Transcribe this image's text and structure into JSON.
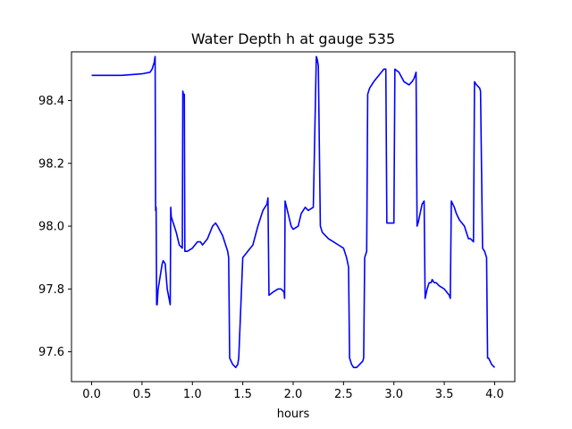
{
  "chart_data": {
    "type": "line",
    "title": "Water Depth h at gauge 535",
    "xlabel": "hours",
    "ylabel": "",
    "xlim": [
      -0.2,
      4.2
    ],
    "ylim": [
      97.505,
      98.555
    ],
    "xticks": [
      0.0,
      0.5,
      1.0,
      1.5,
      2.0,
      2.5,
      3.0,
      3.5,
      4.0
    ],
    "xtick_labels": [
      "0.0",
      "0.5",
      "1.0",
      "1.5",
      "2.0",
      "2.5",
      "3.0",
      "3.5",
      "4.0"
    ],
    "yticks": [
      97.6,
      97.8,
      98.0,
      98.2,
      98.4
    ],
    "ytick_labels": [
      "97.6",
      "97.8",
      "98.0",
      "98.2",
      "98.4"
    ],
    "grid": false,
    "series": [
      {
        "color": "#0000ff",
        "x": [
          0.0,
          0.3,
          0.5,
          0.58,
          0.6,
          0.62,
          0.63,
          0.635,
          0.64,
          0.645,
          0.65,
          0.66,
          0.7,
          0.71,
          0.73,
          0.75,
          0.78,
          0.785,
          0.79,
          0.8,
          0.84,
          0.87,
          0.9,
          0.905,
          0.91,
          0.92,
          0.925,
          0.93,
          0.95,
          1.0,
          1.05,
          1.08,
          1.1,
          1.15,
          1.2,
          1.23,
          1.25,
          1.3,
          1.35,
          1.36,
          1.37,
          1.4,
          1.43,
          1.45,
          1.46,
          1.5,
          1.55,
          1.6,
          1.65,
          1.7,
          1.74,
          1.75,
          1.76,
          1.8,
          1.85,
          1.88,
          1.91,
          1.915,
          1.92,
          1.95,
          1.98,
          2.0,
          2.05,
          2.08,
          2.1,
          2.12,
          2.15,
          2.2,
          2.23,
          2.24,
          2.245,
          2.25,
          2.27,
          2.28,
          2.29,
          2.32,
          2.35,
          2.4,
          2.45,
          2.5,
          2.53,
          2.55,
          2.56,
          2.58,
          2.6,
          2.63,
          2.66,
          2.69,
          2.7,
          2.71,
          2.73,
          2.74,
          2.76,
          2.8,
          2.85,
          2.9,
          2.92,
          2.93,
          2.94,
          2.96,
          2.99,
          3.0,
          3.01,
          3.05,
          3.1,
          3.15,
          3.18,
          3.2,
          3.22,
          3.23,
          3.24,
          3.26,
          3.28,
          3.3,
          3.31,
          3.33,
          3.35,
          3.37,
          3.38,
          3.4,
          3.42,
          3.45,
          3.5,
          3.55,
          3.56,
          3.57,
          3.6,
          3.62,
          3.65,
          3.7,
          3.72,
          3.74,
          3.76,
          3.79,
          3.8,
          3.82,
          3.85,
          3.86,
          3.88,
          3.9,
          3.92,
          3.93,
          3.94,
          3.97,
          4.0
        ],
        "y": [
          98.48,
          98.48,
          98.485,
          98.49,
          98.5,
          98.52,
          98.54,
          98.05,
          98.06,
          97.75,
          97.75,
          97.8,
          97.88,
          97.89,
          97.88,
          97.8,
          97.75,
          98.06,
          98.03,
          98.02,
          97.98,
          97.94,
          97.93,
          98.43,
          98.42,
          98.42,
          97.92,
          97.92,
          97.92,
          97.93,
          97.95,
          97.95,
          97.94,
          97.96,
          98.0,
          98.01,
          98.0,
          97.97,
          97.92,
          97.9,
          97.58,
          97.56,
          97.55,
          97.56,
          97.58,
          97.9,
          97.92,
          97.94,
          98.0,
          98.05,
          98.07,
          98.09,
          97.78,
          97.79,
          97.8,
          97.8,
          97.79,
          97.77,
          98.08,
          98.04,
          98.0,
          97.99,
          98.0,
          98.04,
          98.05,
          98.06,
          98.05,
          98.06,
          98.54,
          98.53,
          98.52,
          98.51,
          98.0,
          97.99,
          97.98,
          97.97,
          97.96,
          97.95,
          97.94,
          97.93,
          97.9,
          97.87,
          97.58,
          97.56,
          97.55,
          97.55,
          97.56,
          97.57,
          97.58,
          97.9,
          97.92,
          98.42,
          98.44,
          98.46,
          98.48,
          98.5,
          98.5,
          98.01,
          98.01,
          98.01,
          98.01,
          98.01,
          98.5,
          98.49,
          98.46,
          98.45,
          98.46,
          98.47,
          98.49,
          98.0,
          98.01,
          98.04,
          98.07,
          98.08,
          97.77,
          97.8,
          97.82,
          97.82,
          97.83,
          97.82,
          97.82,
          97.81,
          97.8,
          97.78,
          97.77,
          98.08,
          98.06,
          98.04,
          98.02,
          98.0,
          97.98,
          97.96,
          97.96,
          97.95,
          98.46,
          98.45,
          98.44,
          98.43,
          97.93,
          97.92,
          97.9,
          97.58,
          97.58,
          97.56,
          97.55
        ]
      }
    ]
  }
}
